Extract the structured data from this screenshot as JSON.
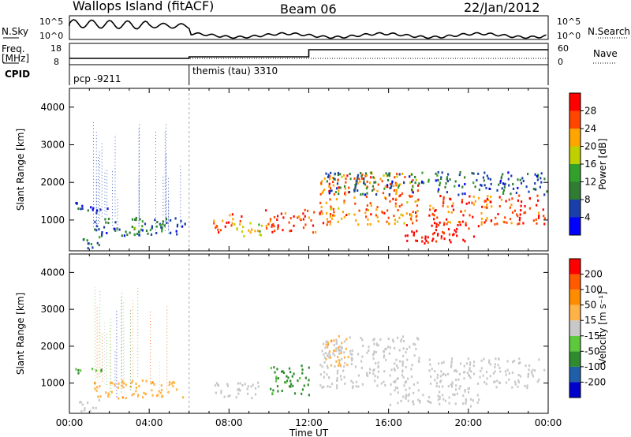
{
  "header": {
    "station": "Wallops Island (fitACF)",
    "beam": "Beam 06",
    "date": "22/Jan/2012"
  },
  "top_panel": {
    "left_label": "N.Sky",
    "right_label": "N.Search",
    "left_ticks": [
      "10^5",
      "10^0"
    ],
    "right_ticks": [
      "10^5",
      "10^0"
    ]
  },
  "freq_panel": {
    "left_label_line1": "Freq.",
    "left_label_line2": "[MHz]",
    "right_label": "Nave",
    "left_ticks": [
      "18",
      "8"
    ],
    "right_ticks": [
      "60",
      "0"
    ]
  },
  "cpid_panel": {
    "label": "CPID",
    "programs": [
      {
        "name": "pcp -9211",
        "start_hour": 0,
        "end_hour": 6
      },
      {
        "name": "themis (tau) 3310",
        "start_hour": 6,
        "end_hour": 24
      }
    ]
  },
  "colors": {
    "power": [
      "#0000ff",
      "#1a3fa8",
      "#2e7d32",
      "#33a02c",
      "#bfd000",
      "#ffa500",
      "#ff4500",
      "#ff0000"
    ],
    "velocity": [
      "#ff0000",
      "#ff5a00",
      "#ff8c00",
      "#ffb347",
      "#c8c8c8",
      "#5cc83c",
      "#2e8b2e",
      "#1f5fa8",
      "#0000cc"
    ],
    "ground_scatter": "#c8c8c8"
  },
  "chart_data": [
    {
      "type": "heatmap",
      "ylabel": "Slant Range [km]",
      "xlabel": "Time UT",
      "x_ticks": [
        "00:00",
        "04:00",
        "08:00",
        "12:00",
        "16:00",
        "20:00",
        "00:00"
      ],
      "xlim": [
        0,
        24
      ],
      "y_ticks": [
        1000,
        2000,
        3000,
        4000
      ],
      "ylim": [
        180,
        4500
      ],
      "colorbar": {
        "label": "Power [dB]",
        "ticks": [
          "4",
          "8",
          "12",
          "16",
          "20",
          "24",
          "28"
        ],
        "range": [
          0,
          32
        ]
      },
      "regions": [
        {
          "t0": 0.2,
          "t1": 1.9,
          "r0": 1200,
          "r1": 1500,
          "value": 6
        },
        {
          "t0": 0.4,
          "t1": 1.5,
          "r0": 250,
          "r1": 600,
          "value": 10
        },
        {
          "t0": 1.2,
          "t1": 5.8,
          "r0": 600,
          "r1": 1100,
          "value": 8
        },
        {
          "t0": 3.0,
          "t1": 4.8,
          "r0": 700,
          "r1": 1000,
          "value": 12
        },
        {
          "t0": 7.2,
          "t1": 8.6,
          "r0": 700,
          "r1": 1200,
          "value": 28
        },
        {
          "t0": 8.2,
          "t1": 10.0,
          "r0": 600,
          "r1": 1000,
          "value": 20
        },
        {
          "t0": 9.8,
          "t1": 12.3,
          "r0": 700,
          "r1": 1300,
          "value": 28
        },
        {
          "t0": 12.5,
          "t1": 17.5,
          "r0": 900,
          "r1": 2300,
          "value": 24
        },
        {
          "t0": 16.8,
          "t1": 20.5,
          "r0": 400,
          "r1": 900,
          "value": 30
        },
        {
          "t0": 18.0,
          "t1": 23.8,
          "r0": 900,
          "r1": 1700,
          "value": 26
        },
        {
          "t0": 12.8,
          "t1": 23.9,
          "r0": 1700,
          "r1": 2300,
          "value": 8
        }
      ]
    },
    {
      "type": "heatmap",
      "ylabel": "Slant Range [km]",
      "xlabel": "Time UT",
      "x_ticks": [
        "00:00",
        "04:00",
        "08:00",
        "12:00",
        "16:00",
        "20:00",
        "00:00"
      ],
      "xlim": [
        0,
        24
      ],
      "y_ticks": [
        1000,
        2000,
        3000,
        4000
      ],
      "ylim": [
        180,
        4500
      ],
      "colorbar": {
        "label": "Velocity [m s⁻¹]",
        "ticks": [
          "200",
          "100",
          "50",
          "15",
          "-15",
          "-50",
          "-100",
          "-200"
        ],
        "range": [
          -250,
          250
        ]
      },
      "regions": [
        {
          "t0": 0.2,
          "t1": 1.6,
          "r0": 1300,
          "r1": 1500,
          "value": -80
        },
        {
          "t0": 0.4,
          "t1": 1.5,
          "r0": 250,
          "r1": 600,
          "value": 0
        },
        {
          "t0": 1.2,
          "t1": 5.8,
          "r0": 600,
          "r1": 1100,
          "value": 60
        },
        {
          "t0": 7.2,
          "t1": 9.5,
          "r0": 600,
          "r1": 1100,
          "value": 0
        },
        {
          "t0": 10.0,
          "t1": 12.0,
          "r0": 700,
          "r1": 1500,
          "value": -100
        },
        {
          "t0": 12.5,
          "t1": 17.5,
          "r0": 900,
          "r1": 2300,
          "value": 0
        },
        {
          "t0": 16.0,
          "t1": 20.5,
          "r0": 400,
          "r1": 900,
          "value": 0
        },
        {
          "t0": 18.0,
          "t1": 23.8,
          "r0": 900,
          "r1": 1700,
          "value": 0
        },
        {
          "t0": 12.8,
          "t1": 14.0,
          "r0": 1500,
          "r1": 2300,
          "value": 60
        }
      ]
    }
  ]
}
